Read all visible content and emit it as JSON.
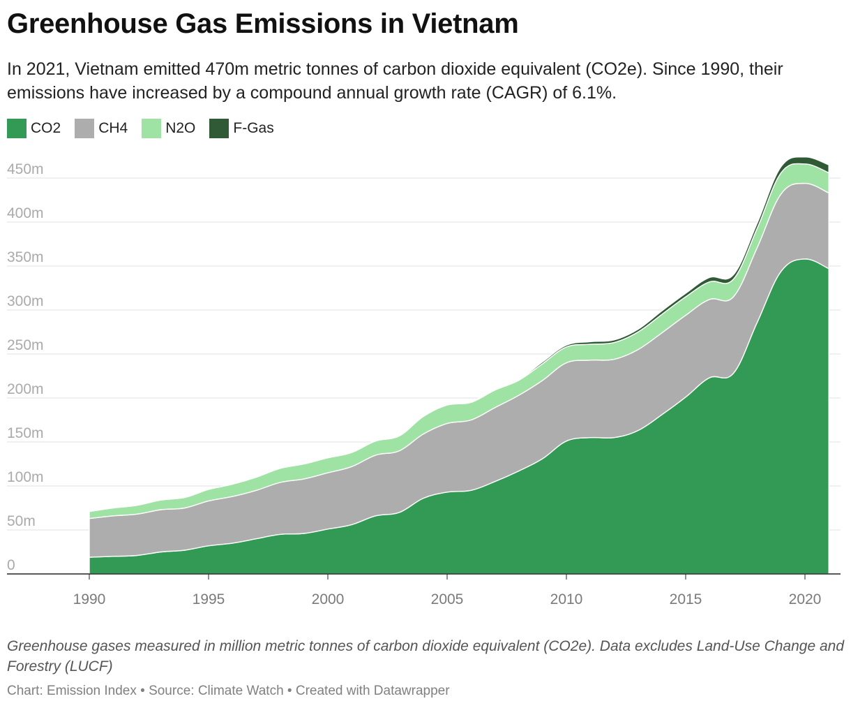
{
  "header": {
    "title": "Greenhouse Gas Emissions in Vietnam",
    "subtitle": "In 2021, Vietnam emitted 470m metric tonnes of carbon dioxide equivalent (CO2e). Since 1990, their emissions have increased by a compound annual growth rate (CAGR) of 6.1%."
  },
  "legend": [
    {
      "label": "CO2",
      "color": "#339a55"
    },
    {
      "label": "CH4",
      "color": "#adadad"
    },
    {
      "label": "N2O",
      "color": "#9fe3a4"
    },
    {
      "label": "F-Gas",
      "color": "#305a36"
    }
  ],
  "chart_data": {
    "type": "area",
    "stacked": true,
    "x": [
      1990,
      1991,
      1992,
      1993,
      1994,
      1995,
      1996,
      1997,
      1998,
      1999,
      2000,
      2001,
      2002,
      2003,
      2004,
      2005,
      2006,
      2007,
      2008,
      2009,
      2010,
      2011,
      2012,
      2013,
      2014,
      2015,
      2016,
      2017,
      2018,
      2019,
      2020,
      2021
    ],
    "series": [
      {
        "name": "CO2",
        "color": "#339a55",
        "values": [
          19,
          20,
          21,
          25,
          27,
          32,
          35,
          40,
          45,
          46,
          51,
          56,
          66,
          70,
          86,
          93,
          95,
          105,
          117,
          131,
          151,
          155,
          155,
          163,
          181,
          201,
          223,
          228,
          286,
          344,
          358,
          347
        ]
      },
      {
        "name": "CH4",
        "color": "#adadad",
        "values": [
          44,
          46,
          47,
          48,
          48,
          51,
          53,
          55,
          59,
          62,
          64,
          66,
          69,
          70,
          73,
          78,
          80,
          84,
          86,
          89,
          89,
          88,
          89,
          92,
          93,
          93,
          89,
          87,
          85,
          88,
          86,
          86
        ]
      },
      {
        "name": "N2O",
        "color": "#9fe3a4",
        "values": [
          8,
          9,
          10,
          11,
          12,
          13,
          14,
          15,
          16,
          17,
          17,
          16,
          16,
          17,
          20,
          21,
          20,
          20,
          17,
          19,
          18,
          18,
          19,
          20,
          21,
          21,
          20,
          20,
          22,
          24,
          22,
          23
        ]
      },
      {
        "name": "F-Gas",
        "color": "#305a36",
        "values": [
          0,
          0,
          0,
          0,
          0,
          0,
          0,
          0,
          0,
          0,
          0,
          0,
          1,
          1,
          1,
          1,
          1,
          1,
          1,
          2,
          2,
          3,
          3,
          3,
          4,
          4,
          5,
          5,
          6,
          7,
          8,
          9
        ]
      }
    ],
    "y_ticks": [
      "0",
      "50m",
      "100m",
      "150m",
      "200m",
      "250m",
      "300m",
      "350m",
      "400m",
      "450m"
    ],
    "x_ticks": [
      "1990",
      "1995",
      "2000",
      "2005",
      "2010",
      "2015",
      "2020"
    ],
    "ylim": [
      0,
      470
    ],
    "xlim": [
      1988,
      2022
    ],
    "grid": true,
    "legend_position": "top-left"
  },
  "notes": "Greenhouse gases measured in million metric tonnes of carbon dioxide equivalent (CO2e). Data excludes Land-Use Change and Forestry (LUCF)",
  "footer": "Chart: Emission Index • Source: Climate Watch • Created with Datawrapper"
}
